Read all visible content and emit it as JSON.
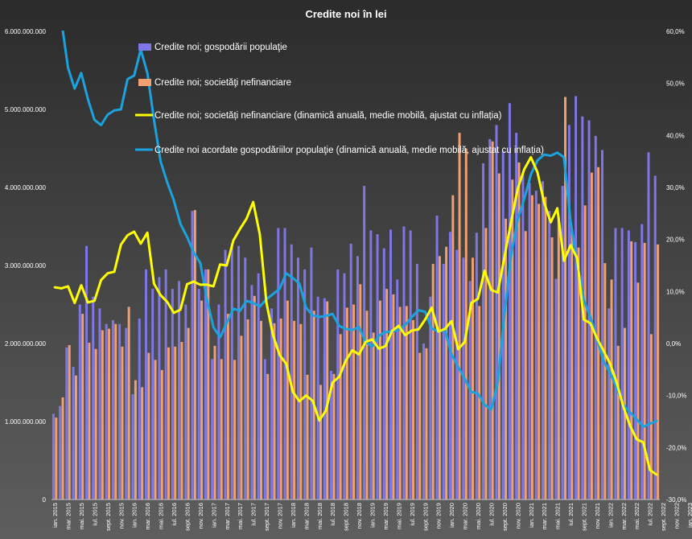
{
  "chart_data": {
    "type": "bar",
    "title": "Credite noi în lei",
    "colors": {
      "background_top": "#2b2b2b",
      "background_bottom": "#5e5e5e",
      "bar_households": "#7f77e6",
      "bar_companies": "#f0a071",
      "line_companies": "#ffff00",
      "line_households": "#1ba3df",
      "text": "#ffffff"
    },
    "y_left": {
      "range": [
        0,
        6000000000
      ],
      "ticks": [
        "0",
        "1.000.000.000",
        "2.000.000.000",
        "3.000.000.000",
        "4.000.000.000",
        "5.000.000.000",
        "6.000.000.000"
      ]
    },
    "y_right": {
      "range": [
        -30,
        60
      ],
      "ticks": [
        "-30,0%",
        "-20,0%",
        "-10,0%",
        "0,0%",
        "10,0%",
        "20,0%",
        "30,0%",
        "40,0%",
        "50,0%",
        "60,0%"
      ]
    },
    "x_tick_labels": [
      "ian. 2015",
      "mar. 2015",
      "mai. 2015",
      "iul. 2015",
      "sept. 2015",
      "nov. 2015",
      "ian. 2016",
      "mar. 2016",
      "mai. 2016",
      "iul. 2016",
      "sept. 2016",
      "nov. 2016",
      "ian. 2017",
      "mar. 2017",
      "mai. 2017",
      "iul. 2017",
      "sept. 2017",
      "nov. 2017",
      "ian. 2018",
      "mar. 2018",
      "mai. 2018",
      "iul. 2018",
      "sept. 2018",
      "nov. 2018",
      "ian. 2019",
      "mar. 2019",
      "mai. 2019",
      "iul. 2019",
      "sept. 2019",
      "nov. 2019",
      "ian. 2020",
      "mar. 2020",
      "mai. 2020",
      "iul. 2020",
      "sept. 2020",
      "nov. 2020",
      "ian. 2021",
      "mar. 2021",
      "mai. 2021",
      "iul. 2021",
      "sept. 2021",
      "nov. 2021",
      "ian. 2022",
      "mar. 2022",
      "mai. 2022",
      "iul. 2022",
      "sept. 2022",
      "nov. 2022",
      "ian. 2023",
      "mar. 2023",
      "mai. 2023"
    ],
    "legend": {
      "placement": "top-left",
      "entries": [
        "Credite noi; gospodării populaţie",
        "Credite noi; societăţi nefinanciare",
        "Credite noi; societăți nefinanciare (dinamică anuală, medie mobilă, ajustat cu inflația)",
        "Credite noi acordate gospodăriilor populaţie (dinamică anuală, medie mobilă, ajustat cu inflația)"
      ]
    },
    "series": [
      {
        "name": "Credite noi; gospodării populaţie",
        "kind": "bar",
        "axis": "left",
        "values": [
          1100000000,
          1200000000,
          1950000000,
          1700000000,
          2500000000,
          3250000000,
          2600000000,
          2450000000,
          2250000000,
          2300000000,
          2250000000,
          2200000000,
          1350000000,
          2320000000,
          2950000000,
          2700000000,
          2850000000,
          2950000000,
          2700000000,
          2800000000,
          2500000000,
          3700000000,
          2700000000,
          2950000000,
          1800000000,
          2500000000,
          3200000000,
          3280000000,
          3250000000,
          3100000000,
          2750000000,
          2900000000,
          1800000000,
          2450000000,
          3480000000,
          3480000000,
          3270000000,
          3100000000,
          2950000000,
          3230000000,
          2600000000,
          2580000000,
          1650000000,
          2950000000,
          2900000000,
          3280000000,
          3120000000,
          4020000000,
          3450000000,
          3400000000,
          3220000000,
          3460000000,
          2820000000,
          3500000000,
          3450000000,
          3020000000,
          2000000000,
          2600000000,
          3640000000,
          3020000000,
          3430000000,
          3200000000,
          3100000000,
          2800000000,
          3420000000,
          4310000000,
          4620000000,
          4800000000,
          4470000000,
          5080000000,
          4700000000,
          4170000000,
          4060000000,
          3960000000,
          4080000000,
          3700000000,
          2830000000,
          4020000000,
          4800000000,
          5170000000,
          4910000000,
          4860000000,
          4660000000,
          4480000000,
          2450000000,
          3480000000,
          3480000000,
          3450000000,
          3300000000,
          3530000000,
          4450000000,
          4150000000
        ],
        "role": "bars"
      },
      {
        "name": "Credite noi; societăţi nefinanciare",
        "kind": "bar",
        "axis": "left",
        "values": [
          1050000000,
          1310000000,
          1980000000,
          1590000000,
          2380000000,
          2010000000,
          1930000000,
          2170000000,
          2190000000,
          2250000000,
          1960000000,
          2470000000,
          1530000000,
          1440000000,
          1880000000,
          1790000000,
          1660000000,
          1950000000,
          1960000000,
          2020000000,
          2200000000,
          3710000000,
          2550000000,
          2950000000,
          1970000000,
          1800000000,
          2380000000,
          1790000000,
          2100000000,
          2310000000,
          2610000000,
          2290000000,
          1610000000,
          2260000000,
          2320000000,
          2550000000,
          2290000000,
          2250000000,
          1600000000,
          2420000000,
          1470000000,
          2540000000,
          1610000000,
          2120000000,
          2460000000,
          2500000000,
          2760000000,
          2420000000,
          2140000000,
          2550000000,
          2700000000,
          2630000000,
          2470000000,
          2480000000,
          2300000000,
          1880000000,
          1940000000,
          3020000000,
          3120000000,
          3240000000,
          3900000000,
          4700000000,
          4500000000,
          3100000000,
          2480000000,
          3480000000,
          4590000000,
          4180000000,
          3600000000,
          4100000000,
          4320000000,
          3440000000,
          3900000000,
          3790000000,
          3880000000,
          3360000000,
          3620000000,
          5160000000,
          3450000000,
          3230000000,
          3770000000,
          4190000000,
          4260000000,
          3030000000,
          2820000000,
          1970000000,
          2200000000,
          3310000000,
          2780000000,
          3290000000,
          2120000000,
          3270000000
        ],
        "role": "bars"
      },
      {
        "name": "Credite noi; societăți nefinanciare (dinamică anuală, medie mobilă, ajustat cu inflația)",
        "kind": "line",
        "axis": "right",
        "values": [
          10.8,
          10.6,
          11.0,
          7.8,
          11.2,
          7.9,
          8.2,
          12.2,
          13.5,
          13.8,
          19.0,
          20.8,
          21.5,
          19.2,
          21.3,
          11.5,
          9.3,
          8.0,
          5.9,
          6.5,
          11.4,
          11.9,
          11.3,
          11.3,
          11.0,
          15.2,
          15.0,
          19.8,
          22.0,
          24.0,
          27.2,
          21.0,
          7.9,
          1.6,
          -2.2,
          -3.9,
          -9.3,
          -11.1,
          -10.0,
          -11.0,
          -14.8,
          -12.9,
          -7.5,
          -6.4,
          -3.3,
          -1.3,
          -2.1,
          0.3,
          0.8,
          -1.0,
          -0.5,
          2.4,
          3.4,
          1.6,
          2.5,
          2.7,
          4.6,
          6.9,
          2.3,
          2.8,
          4.3,
          -1.1,
          0.3,
          7.8,
          8.6,
          14.0,
          10.3,
          9.8,
          16.6,
          23.3,
          29.7,
          33.5,
          35.8,
          32.9,
          27.1,
          23.3,
          26.0,
          15.9,
          18.9,
          16.4,
          4.6,
          3.9,
          1.0,
          -1.4,
          -3.9,
          -7.6,
          -12.2,
          -15.8,
          -18.4,
          -19.0,
          -24.3,
          -25.2
        ]
      },
      {
        "name": "Credite noi acordate gospodăriilor populaţie (dinamică anuală, medie mobilă, ajustat cu inflația)",
        "kind": "line",
        "axis": "right",
        "values": [
          65,
          62,
          53,
          49,
          52,
          47,
          43,
          42,
          44,
          44.8,
          45,
          50.8,
          51.5,
          56.5,
          52,
          43,
          35,
          31,
          27.5,
          23,
          20.5,
          17.5,
          15.5,
          8.5,
          3.1,
          1.2,
          3.9,
          6.7,
          6.3,
          8.2,
          7.8,
          7.1,
          8.5,
          9.5,
          10.5,
          13.5,
          12.6,
          11.5,
          6.9,
          5.4,
          5.1,
          5.3,
          5.7,
          3.4,
          2.8,
          2.6,
          3.2,
          0.3,
          -0.6,
          1.5,
          2.2,
          2.3,
          2.6,
          3.6,
          5.1,
          6.4,
          6.1,
          2.9,
          2.3,
          2.6,
          -2.1,
          -4.5,
          -6.8,
          -9.3,
          -9.6,
          -11.8,
          -12.7,
          -7.4,
          5.6,
          16.9,
          23.8,
          27.8,
          32.5,
          35.2,
          36.3,
          36.1,
          36.7,
          35.8,
          23.5,
          15.5,
          8.4,
          5.1,
          0.9,
          -3.4,
          -5.7,
          -8.6,
          -11.8,
          -13.2,
          -14.6,
          -16.0,
          -15.4,
          -14.9
        ]
      }
    ]
  }
}
